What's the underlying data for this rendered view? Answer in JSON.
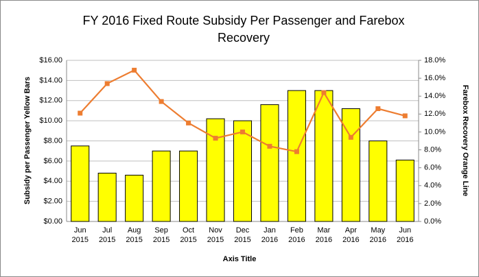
{
  "chart_data": {
    "type": "bar_line",
    "title": "FY 2016 Fixed Route Subsidy Per Passenger and Farebox Recovery",
    "x_label": "Axis Title",
    "y_label": "Subsidy per Passenger Yellow Bars",
    "y2_label": "Farebox Recovery Orange Line",
    "categories": [
      "Jun 2015",
      "Jul 2015",
      "Aug 2015",
      "Sep 2015",
      "Oct 2015",
      "Nov 2015",
      "Dec 2015",
      "Jan 2016",
      "Feb 2016",
      "Mar 2016",
      "Apr 2016",
      "May 2016",
      "Jun 2016"
    ],
    "series": [
      {
        "type": "bar",
        "color": "#ffff00",
        "values": [
          7.5,
          4.8,
          4.6,
          7.0,
          7.0,
          10.2,
          10.0,
          11.6,
          13.0,
          13.0,
          11.2,
          8.0,
          6.1
        ]
      },
      {
        "type": "line",
        "axis": "y2",
        "color": "#ed7d31",
        "values": [
          12.1,
          15.4,
          16.9,
          13.4,
          11.0,
          9.3,
          10.0,
          8.4,
          7.8,
          14.4,
          9.4,
          12.6,
          11.8
        ]
      }
    ],
    "ylim": [
      0,
      16
    ],
    "yticks": [
      {
        "value": 0,
        "label": "$0.00"
      },
      {
        "value": 2,
        "label": "$2.00"
      },
      {
        "value": 4,
        "label": "$4.00"
      },
      {
        "value": 6,
        "label": "$6.00"
      },
      {
        "value": 8,
        "label": "$8.00"
      },
      {
        "value": 10,
        "label": "$10.00"
      },
      {
        "value": 12,
        "label": "$12.00"
      },
      {
        "value": 14,
        "label": "$14.00"
      },
      {
        "value": 16,
        "label": "$16.00"
      }
    ],
    "y2lim": [
      0,
      18
    ],
    "y2ticks": [
      {
        "value": 0,
        "label": "0.0%"
      },
      {
        "value": 2,
        "label": "2.0%"
      },
      {
        "value": 4,
        "label": "4.0%"
      },
      {
        "value": 6,
        "label": "6.0%"
      },
      {
        "value": 8,
        "label": "8.0%"
      },
      {
        "value": 10,
        "label": "10.0%"
      },
      {
        "value": 12,
        "label": "12.0%"
      },
      {
        "value": 14,
        "label": "14.0%"
      },
      {
        "value": 16,
        "label": "16.0%"
      },
      {
        "value": 18,
        "label": "18.0%"
      }
    ],
    "grid": true
  }
}
